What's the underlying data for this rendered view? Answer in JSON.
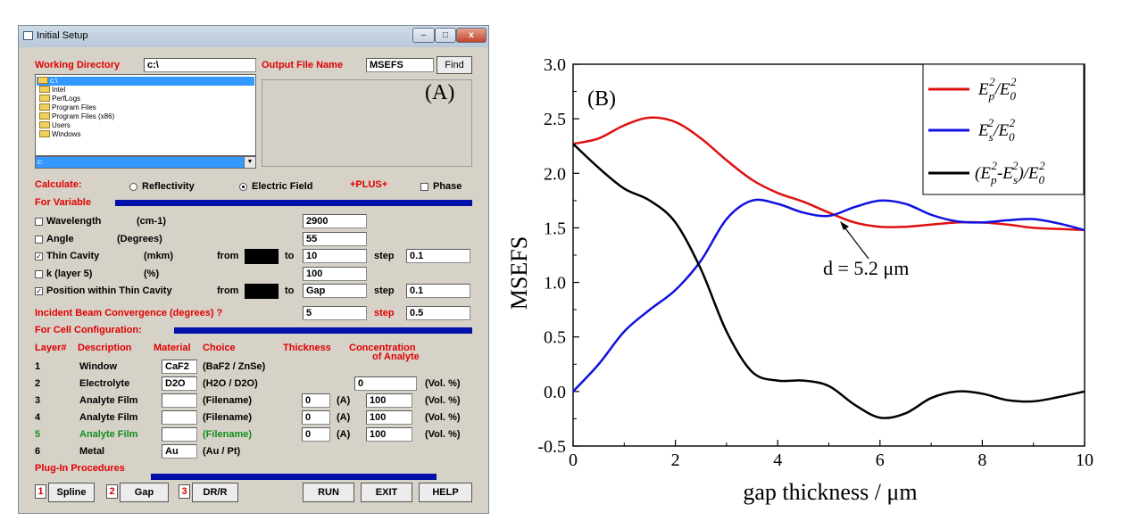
{
  "window": {
    "title": "Initial Setup",
    "controls": {
      "minimize": "–",
      "maximize": "□",
      "close": "x"
    },
    "panel_label": "(A)",
    "working_directory": {
      "label": "Working Directory",
      "value": "c:\\"
    },
    "dir_list": [
      "c:\\",
      "Intel",
      "PerfLogs",
      "Program Files",
      "Program Files (x86)",
      "Users",
      "Windows"
    ],
    "drive": "c:",
    "output_file": {
      "label": "Output File Name",
      "value": "MSEFS",
      "find_label": "Find"
    },
    "calculate": {
      "label": "Calculate:",
      "reflectivity": "Reflectivity",
      "electric_field": "Electric Field",
      "plus": "+PLUS+",
      "phase": "Phase",
      "selected": "Electric Field"
    },
    "for_variable": "For Variable",
    "variables": [
      {
        "name": "Wavelength",
        "unit": "(cm-1)",
        "checked": false,
        "value": "2900"
      },
      {
        "name": "Angle",
        "unit": "(Degrees)",
        "checked": false,
        "value": "55"
      },
      {
        "name": "Thin Cavity",
        "unit": "(mkm)",
        "checked": true,
        "from_label": "from",
        "to_label": "to",
        "to": "10",
        "step_label": "step",
        "step": "0.1"
      },
      {
        "name": "k (layer 5)",
        "unit": "(%)",
        "checked": false,
        "value": "100"
      },
      {
        "name": "Position within Thin Cavity",
        "checked": true,
        "from_label": "from",
        "to_label": "to",
        "to": "Gap",
        "step_label": "step",
        "step": "0.1"
      }
    ],
    "incident": {
      "label": "Incident Beam Convergence  (degrees)  ?",
      "value": "5",
      "step_label": "step",
      "step": "0.5"
    },
    "cell_config": "For Cell Configuration:",
    "layer_headers": {
      "layer": "Layer#",
      "description": "Description",
      "material": "Material",
      "choice": "Choice",
      "thickness": "Thickness",
      "concentration": "Concentration",
      "analyte": "of Analyte"
    },
    "layers": [
      {
        "num": "1",
        "desc": "Window",
        "material": "CaF2",
        "choice": "(BaF2 / ZnSe)"
      },
      {
        "num": "2",
        "desc": "Electrolyte",
        "material": "D2O",
        "choice": "(H2O / D2O)",
        "conc": "0",
        "conc_unit": "(Vol. %)"
      },
      {
        "num": "3",
        "desc": "Analyte Film",
        "material": "",
        "choice": "(Filename)",
        "thickness": "0",
        "t_unit": "(A)",
        "conc": "100",
        "conc_unit": "(Vol. %)"
      },
      {
        "num": "4",
        "desc": "Analyte Film",
        "material": "",
        "choice": "(Filename)",
        "thickness": "0",
        "t_unit": "(A)",
        "conc": "100",
        "conc_unit": "(Vol. %)"
      },
      {
        "num": "5",
        "desc": "Analyte Film",
        "material": "",
        "choice": "(Filename)",
        "thickness": "0",
        "t_unit": "(A)",
        "conc": "100",
        "conc_unit": "(Vol. %)"
      },
      {
        "num": "6",
        "desc": "Metal",
        "material": "Au",
        "choice": "(Au / Pt)"
      }
    ],
    "plugin": "Plug-In Procedures",
    "plugins": [
      {
        "num": "1",
        "label": "Spline"
      },
      {
        "num": "2",
        "label": "Gap"
      },
      {
        "num": "3",
        "label": "DR/R"
      }
    ],
    "actions": {
      "run": "RUN",
      "exit": "EXIT",
      "help": "HELP"
    },
    "colors": {
      "red_label": "#e00000",
      "green_layer": "#10901e",
      "bar": "#0010a8"
    }
  },
  "chart_data": {
    "type": "line",
    "panel_label": "(B)",
    "xlabel": "gap thickness / μm",
    "ylabel": "MSEFS",
    "xlim": [
      0,
      10
    ],
    "ylim": [
      -0.5,
      3.0
    ],
    "xticks": [
      "0",
      "2",
      "4",
      "6",
      "8",
      "10"
    ],
    "yticks": [
      "-0.5",
      "0.0",
      "0.5",
      "1.0",
      "1.5",
      "2.0",
      "2.5",
      "3.0"
    ],
    "annotation": "d = 5.2 μm",
    "legend_position": "top-right",
    "legend": [
      "Ep²/E0²",
      "Es²/E0²",
      "(Ep²-Es²)/E0²"
    ],
    "series": [
      {
        "name": "Ep²/E0²",
        "color": "#e01010",
        "x": [
          0,
          0.5,
          1.0,
          1.5,
          2.0,
          2.5,
          3.0,
          3.5,
          4.0,
          4.5,
          5.0,
          5.5,
          6.0,
          6.5,
          7.0,
          7.5,
          8.0,
          8.5,
          9.0,
          9.5,
          10.0
        ],
        "y": [
          2.27,
          2.32,
          2.44,
          2.51,
          2.47,
          2.32,
          2.12,
          1.94,
          1.82,
          1.74,
          1.64,
          1.55,
          1.51,
          1.51,
          1.53,
          1.55,
          1.55,
          1.53,
          1.5,
          1.49,
          1.48
        ]
      },
      {
        "name": "Es²/E0²",
        "color": "#1010e0",
        "x": [
          0,
          0.5,
          1.0,
          1.5,
          2.0,
          2.5,
          3.0,
          3.5,
          4.0,
          4.5,
          5.0,
          5.5,
          6.0,
          6.5,
          7.0,
          7.5,
          8.0,
          8.5,
          9.0,
          9.5,
          10.0
        ],
        "y": [
          0.0,
          0.25,
          0.55,
          0.75,
          0.93,
          1.2,
          1.58,
          1.75,
          1.72,
          1.64,
          1.61,
          1.69,
          1.75,
          1.72,
          1.62,
          1.56,
          1.55,
          1.57,
          1.58,
          1.54,
          1.48
        ]
      },
      {
        "name": "(Ep²-Es²)/E0²",
        "color": "#000000",
        "x": [
          0,
          0.5,
          1.0,
          1.5,
          2.0,
          2.5,
          3.0,
          3.5,
          4.0,
          4.5,
          5.0,
          5.5,
          6.0,
          6.5,
          7.0,
          7.5,
          8.0,
          8.5,
          9.0,
          9.5,
          10.0
        ],
        "y": [
          2.27,
          2.05,
          1.86,
          1.75,
          1.55,
          1.12,
          0.55,
          0.18,
          0.1,
          0.1,
          0.05,
          -0.12,
          -0.24,
          -0.2,
          -0.06,
          0.0,
          -0.02,
          -0.08,
          -0.09,
          -0.05,
          0.0
        ]
      }
    ]
  }
}
